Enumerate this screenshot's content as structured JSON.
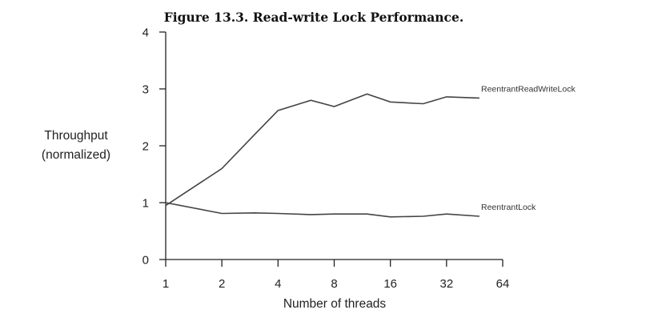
{
  "chart_data": {
    "type": "line",
    "title": "Figure 13.3. Read-write Lock Performance.",
    "xlabel": "Number of threads",
    "ylabel_lines": [
      "Throughput",
      "(normalized)"
    ],
    "x_scale": "log2",
    "xlim": [
      1,
      64
    ],
    "ylim": [
      0,
      4
    ],
    "x_ticks": [
      1,
      2,
      4,
      8,
      16,
      32,
      64
    ],
    "x_tick_labels": [
      "1",
      "2",
      "4",
      "8",
      "16",
      "32",
      "64"
    ],
    "y_ticks": [
      0,
      1,
      2,
      3,
      4
    ],
    "y_tick_labels": [
      "0",
      "1",
      "2",
      "3",
      "4"
    ],
    "grid": false,
    "legend": "none; series labelled directly at right end of lines",
    "series": [
      {
        "name": "ReentrantReadWriteLock",
        "x": [
          1,
          2,
          3,
          4,
          6,
          8,
          12,
          16,
          24,
          32,
          48
        ],
        "y": [
          0.95,
          1.6,
          2.2,
          2.62,
          2.8,
          2.69,
          2.91,
          2.77,
          2.74,
          2.86,
          2.84
        ]
      },
      {
        "name": "ReentrantLock",
        "x": [
          1,
          2,
          3,
          4,
          6,
          8,
          12,
          16,
          24,
          32,
          48
        ],
        "y": [
          1.0,
          0.81,
          0.82,
          0.81,
          0.79,
          0.8,
          0.8,
          0.75,
          0.76,
          0.8,
          0.76
        ]
      }
    ]
  }
}
